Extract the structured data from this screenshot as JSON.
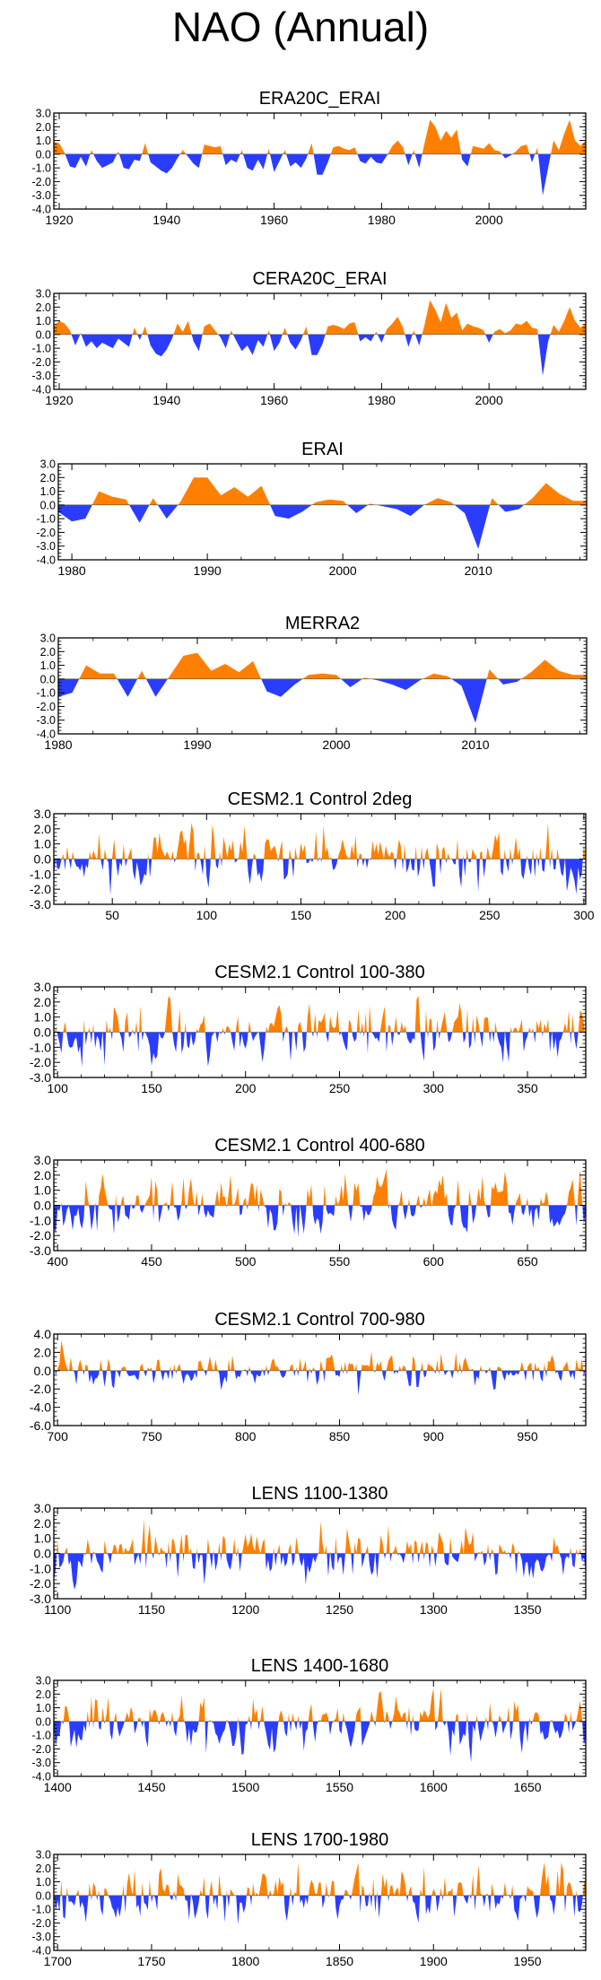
{
  "title": "NAO (Annual)",
  "colors": {
    "positive": "#ff8000",
    "negative": "#2a3dff",
    "axis": "#000000"
  },
  "chart_data": [
    {
      "type": "area",
      "title": "ERA20C_ERAI",
      "seriesType": "reanalysis",
      "xlim": [
        1919,
        2018
      ],
      "ylim": [
        -4.0,
        3.0
      ],
      "yticks": [
        "3.0",
        "2.0",
        "1.0",
        "0.0",
        "-1.0",
        "-2.0",
        "-3.0",
        "-4.0"
      ],
      "xticks": [
        1920,
        1940,
        1960,
        1980,
        2000
      ],
      "x": [
        1919,
        1920,
        1921,
        1922,
        1923,
        1924,
        1925,
        1926,
        1927,
        1928,
        1929,
        1930,
        1931,
        1932,
        1933,
        1934,
        1935,
        1936,
        1937,
        1938,
        1939,
        1940,
        1941,
        1942,
        1943,
        1944,
        1945,
        1946,
        1947,
        1948,
        1949,
        1950,
        1951,
        1952,
        1953,
        1954,
        1955,
        1956,
        1957,
        1958,
        1959,
        1960,
        1961,
        1962,
        1963,
        1964,
        1965,
        1966,
        1967,
        1968,
        1969,
        1970,
        1971,
        1972,
        1973,
        1974,
        1975,
        1976,
        1977,
        1978,
        1979,
        1980,
        1981,
        1982,
        1983,
        1984,
        1985,
        1986,
        1987,
        1988,
        1989,
        1990,
        1991,
        1992,
        1993,
        1994,
        1995,
        1996,
        1997,
        1998,
        1999,
        2000,
        2001,
        2002,
        2003,
        2004,
        2005,
        2006,
        2007,
        2008,
        2009,
        2010,
        2011,
        2012,
        2013,
        2014,
        2015,
        2016,
        2017,
        2018
      ],
      "values": [
        0.9,
        0.8,
        0.1,
        -0.9,
        -1.0,
        -0.2,
        -0.9,
        0.3,
        -0.5,
        -1.0,
        -0.8,
        -0.6,
        0.2,
        -1.0,
        -1.1,
        -0.4,
        -0.5,
        0.8,
        -0.6,
        -0.9,
        -1.2,
        -1.4,
        -1.0,
        -0.3,
        0.3,
        -0.2,
        -0.7,
        -1.0,
        0.7,
        0.6,
        0.5,
        0.6,
        -0.8,
        -0.4,
        -0.6,
        0.3,
        -1.0,
        -1.2,
        -0.4,
        -1.1,
        0.4,
        -1.3,
        -0.5,
        0.3,
        -0.9,
        -0.6,
        -1.0,
        -0.3,
        0.8,
        -1.5,
        -1.5,
        -0.6,
        0.5,
        0.6,
        0.4,
        0.3,
        0.5,
        -0.5,
        -0.7,
        -0.2,
        -0.6,
        -0.7,
        -0.1,
        0.6,
        1.0,
        0.5,
        -0.8,
        0.3,
        -1.0,
        0.8,
        2.5,
        2.0,
        1.0,
        1.7,
        1.2,
        1.8,
        -0.4,
        -0.9,
        0.6,
        0.5,
        0.4,
        0.8,
        0.3,
        0.2,
        -0.3,
        -0.1,
        0.2,
        0.6,
        0.7,
        -0.6,
        0.5,
        -3.0,
        -1.0,
        1.0,
        0.3,
        1.5,
        2.5,
        1.0,
        0.6,
        1.0
      ]
    },
    {
      "type": "area",
      "title": "CERA20C_ERAI",
      "seriesType": "reanalysis",
      "xlim": [
        1919,
        2018
      ],
      "ylim": [
        -4.0,
        3.0
      ],
      "yticks": [
        "3.0",
        "2.0",
        "1.0",
        "0.0",
        "-1.0",
        "-2.0",
        "-3.0",
        "-4.0"
      ],
      "xticks": [
        1920,
        1940,
        1960,
        1980,
        2000
      ],
      "x": [
        1919,
        1920,
        1921,
        1922,
        1923,
        1924,
        1925,
        1926,
        1927,
        1928,
        1929,
        1930,
        1931,
        1932,
        1933,
        1934,
        1935,
        1936,
        1937,
        1938,
        1939,
        1940,
        1941,
        1942,
        1943,
        1944,
        1945,
        1946,
        1947,
        1948,
        1949,
        1950,
        1951,
        1952,
        1953,
        1954,
        1955,
        1956,
        1957,
        1958,
        1959,
        1960,
        1961,
        1962,
        1963,
        1964,
        1965,
        1966,
        1967,
        1968,
        1969,
        1970,
        1971,
        1972,
        1973,
        1974,
        1975,
        1976,
        1977,
        1978,
        1979,
        1980,
        1981,
        1982,
        1983,
        1984,
        1985,
        1986,
        1987,
        1988,
        1989,
        1990,
        1991,
        1992,
        1993,
        1994,
        1995,
        1996,
        1997,
        1998,
        1999,
        2000,
        2001,
        2002,
        2003,
        2004,
        2005,
        2006,
        2007,
        2008,
        2009,
        2010,
        2011,
        2012,
        2013,
        2014,
        2015,
        2016,
        2017,
        2018
      ],
      "values": [
        0.6,
        1.0,
        0.8,
        0.3,
        -0.8,
        0.1,
        -0.9,
        -0.5,
        -1.0,
        -0.6,
        -0.8,
        -1.0,
        -0.3,
        -0.6,
        -0.9,
        0.5,
        -0.4,
        0.6,
        -0.8,
        -1.4,
        -1.6,
        -1.1,
        -0.3,
        0.8,
        0.2,
        1.0,
        -0.5,
        -1.2,
        0.6,
        0.8,
        0.3,
        -0.2,
        -1.0,
        0.3,
        -0.5,
        -1.2,
        -0.8,
        -1.5,
        -0.4,
        -0.9,
        0.3,
        -1.2,
        -0.6,
        0.5,
        -0.6,
        -1.1,
        -0.4,
        0.6,
        -1.5,
        -1.5,
        -0.7,
        0.6,
        0.7,
        0.6,
        0.4,
        0.8,
        0.9,
        -0.5,
        -0.2,
        -0.5,
        0.2,
        -0.6,
        0.4,
        0.8,
        1.3,
        0.5,
        -0.9,
        0.3,
        -0.8,
        0.7,
        2.5,
        1.8,
        0.9,
        2.3,
        1.2,
        1.6,
        0.3,
        0.8,
        0.6,
        0.5,
        0.3,
        -0.6,
        0.2,
        0.4,
        0.1,
        0.3,
        0.8,
        0.7,
        1.0,
        0.5,
        0.4,
        -3.0,
        -0.5,
        0.7,
        0.2,
        1.0,
        2.0,
        1.0,
        0.5,
        0.8
      ]
    },
    {
      "type": "area",
      "title": "ERAI",
      "seriesType": "reanalysis",
      "xlim": [
        1979,
        2018
      ],
      "ylim": [
        -4.0,
        3.0
      ],
      "yticks": [
        "3.0",
        "2.0",
        "1.0",
        "0.0",
        "-1.0",
        "-2.0",
        "-3.0",
        "-4.0"
      ],
      "xticks": [
        1980,
        1990,
        2000,
        2010
      ],
      "x": [
        1979,
        1980,
        1981,
        1982,
        1983,
        1984,
        1985,
        1986,
        1987,
        1988,
        1989,
        1990,
        1991,
        1992,
        1993,
        1994,
        1995,
        1996,
        1997,
        1998,
        1999,
        2000,
        2001,
        2002,
        2003,
        2004,
        2005,
        2006,
        2007,
        2008,
        2009,
        2010,
        2011,
        2012,
        2013,
        2014,
        2015,
        2016,
        2017,
        2018
      ],
      "values": [
        -0.5,
        -1.2,
        -1.0,
        1.0,
        0.6,
        0.4,
        -1.3,
        0.5,
        -1.0,
        0.2,
        2.0,
        2.0,
        0.7,
        1.3,
        0.6,
        1.4,
        -0.8,
        -1.0,
        -0.5,
        0.2,
        0.4,
        0.3,
        -0.6,
        0.1,
        -0.1,
        -0.3,
        -0.8,
        0.0,
        0.5,
        0.2,
        -0.6,
        -3.2,
        0.5,
        -0.5,
        -0.3,
        0.5,
        1.6,
        0.8,
        0.3,
        0.3
      ]
    },
    {
      "type": "area",
      "title": "MERRA2",
      "seriesType": "reanalysis",
      "xlim": [
        1980,
        2018
      ],
      "ylim": [
        -4.0,
        3.0
      ],
      "yticks": [
        "3.0",
        "2.0",
        "1.0",
        "0.0",
        "-1.0",
        "-2.0",
        "-3.0",
        "-4.0"
      ],
      "xticks": [
        1980,
        1990,
        2000,
        2010
      ],
      "x": [
        1980,
        1981,
        1982,
        1983,
        1984,
        1985,
        1986,
        1987,
        1988,
        1989,
        1990,
        1991,
        1992,
        1993,
        1994,
        1995,
        1996,
        1997,
        1998,
        1999,
        2000,
        2001,
        2002,
        2003,
        2004,
        2005,
        2006,
        2007,
        2008,
        2009,
        2010,
        2011,
        2012,
        2013,
        2014,
        2015,
        2016,
        2017,
        2018
      ],
      "values": [
        -1.3,
        -1.0,
        1.0,
        0.4,
        0.4,
        -1.3,
        0.6,
        -1.3,
        0.2,
        1.7,
        1.9,
        0.6,
        1.1,
        0.5,
        1.3,
        -0.9,
        -1.3,
        -0.4,
        0.3,
        0.4,
        0.3,
        -0.6,
        0.1,
        -0.1,
        -0.4,
        -0.8,
        -0.1,
        0.4,
        0.2,
        -0.5,
        -3.2,
        0.7,
        -0.4,
        -0.2,
        0.5,
        1.4,
        0.6,
        0.3,
        0.3
      ]
    },
    {
      "type": "area",
      "title": "CESM2.1 Control 2deg",
      "seriesType": "synthetic",
      "xlim": [
        19,
        301
      ],
      "ylim": [
        -3.0,
        3.0
      ],
      "seed": 11,
      "amp": 1.7,
      "yticks": [
        "3.0",
        "2.0",
        "1.0",
        "0.0",
        "-1.0",
        "-2.0",
        "-3.0"
      ],
      "xticks": [
        50,
        100,
        150,
        200,
        250,
        300
      ]
    },
    {
      "type": "area",
      "title": "CESM2.1 Control 100-380",
      "seriesType": "synthetic",
      "xlim": [
        98,
        381
      ],
      "ylim": [
        -3.0,
        3.0
      ],
      "seed": 23,
      "amp": 1.7,
      "yticks": [
        "3.0",
        "2.0",
        "1.0",
        "0.0",
        "-1.0",
        "-2.0",
        "-3.0"
      ],
      "xticks": [
        100,
        150,
        200,
        250,
        300,
        350
      ]
    },
    {
      "type": "area",
      "title": "CESM2.1 Control 400-680",
      "seriesType": "synthetic",
      "xlim": [
        398,
        681
      ],
      "ylim": [
        -3.0,
        3.0
      ],
      "seed": 37,
      "amp": 1.7,
      "yticks": [
        "3.0",
        "2.0",
        "1.0",
        "0.0",
        "-1.0",
        "-2.0",
        "-3.0"
      ],
      "xticks": [
        400,
        450,
        500,
        550,
        600,
        650
      ]
    },
    {
      "type": "area",
      "title": "CESM2.1 Control 700-980",
      "seriesType": "synthetic",
      "xlim": [
        698,
        981
      ],
      "ylim": [
        -6.0,
        4.0
      ],
      "seed": 41,
      "amp": 1.6,
      "yticks": [
        "4.0",
        "2.0",
        "0.0",
        "-2.0",
        "-4.0",
        "-6.0"
      ],
      "xticks": [
        700,
        750,
        800,
        850,
        900,
        950
      ]
    },
    {
      "type": "area",
      "title": "LENS 1100-1380",
      "seriesType": "synthetic",
      "xlim": [
        1098,
        1381
      ],
      "ylim": [
        -3.0,
        3.0
      ],
      "seed": 53,
      "amp": 1.7,
      "yticks": [
        "3.0",
        "2.0",
        "1.0",
        "0.0",
        "-1.0",
        "-2.0",
        "-3.0"
      ],
      "xticks": [
        1100,
        1150,
        1200,
        1250,
        1300,
        1350
      ]
    },
    {
      "type": "area",
      "title": "LENS 1400-1680",
      "seriesType": "synthetic",
      "xlim": [
        1398,
        1681
      ],
      "ylim": [
        -4.0,
        3.0
      ],
      "seed": 67,
      "amp": 1.8,
      "yticks": [
        "3.0",
        "2.0",
        "1.0",
        "0.0",
        "-1.0",
        "-2.0",
        "-3.0",
        "-4.0"
      ],
      "xticks": [
        1400,
        1450,
        1500,
        1550,
        1600,
        1650
      ]
    },
    {
      "type": "area",
      "title": "LENS 1700-1980",
      "seriesType": "synthetic",
      "xlim": [
        1698,
        1981
      ],
      "ylim": [
        -4.0,
        3.0
      ],
      "seed": 79,
      "amp": 1.8,
      "yticks": [
        "3.0",
        "2.0",
        "1.0",
        "0.0",
        "-1.0",
        "-2.0",
        "-3.0",
        "-4.0"
      ],
      "xticks": [
        1700,
        1750,
        1800,
        1850,
        1900,
        1950
      ]
    }
  ]
}
